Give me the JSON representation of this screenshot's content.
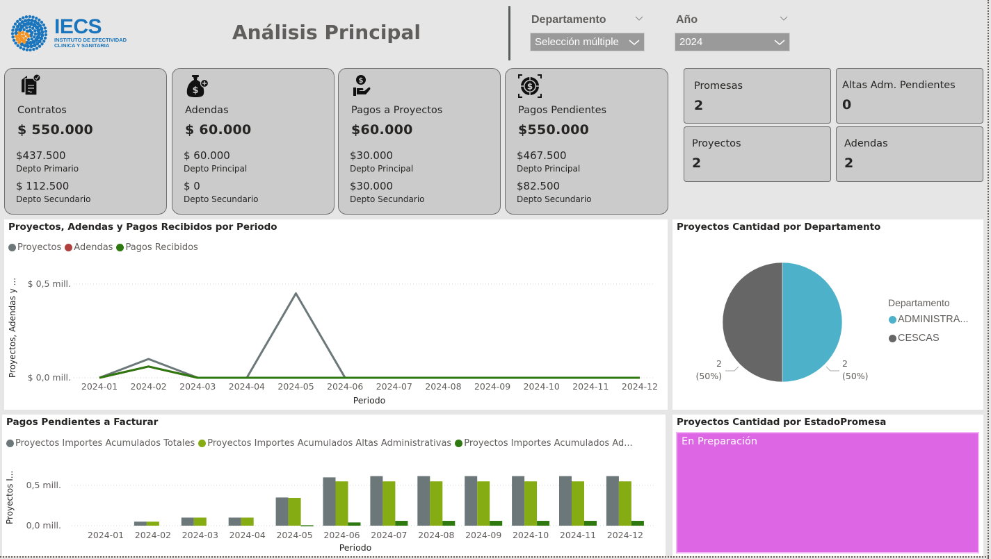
{
  "header": {
    "logo": {
      "name": "IECS",
      "subtitle_line1": "INSTITUTO DE EFECTIVIDAD",
      "subtitle_line2": "CLINICA Y SANITARIA"
    },
    "title": "Análisis Principal"
  },
  "slicers": [
    {
      "label": "Departamento",
      "value": "Selección múltiple"
    },
    {
      "label": "Año",
      "value": "2024"
    }
  ],
  "kpi_cards": [
    {
      "icon": "contract-icon",
      "title": "Contratos",
      "value": "$ 550.000",
      "sub1_value": "$437.500",
      "sub1_label": "Depto Primario",
      "sub2_value": "$ 112.500",
      "sub2_label": "Depto Secundario"
    },
    {
      "icon": "money-bag-icon",
      "title": "Adendas",
      "value": "$ 60.000",
      "sub1_value": "$ 60.000",
      "sub1_label": "Depto Principal",
      "sub2_value": "$ 0",
      "sub2_label": "Depto Secundario"
    },
    {
      "icon": "hand-coin-icon",
      "title": "Pagos a Proyectos",
      "value": "$60.000",
      "sub1_value": "$30.000",
      "sub1_label": "Depto Principal",
      "sub2_value": "$30.000",
      "sub2_label": "Depto Secundario"
    },
    {
      "icon": "dollar-target-icon",
      "title": "Pagos Pendientes",
      "value": "$550.000",
      "sub1_value": "$467.500",
      "sub1_label": "Depto Principal",
      "sub2_value": "$82.500",
      "sub2_label": "Depto Secundario"
    }
  ],
  "small_cards": [
    {
      "title": "Promesas",
      "value": "2"
    },
    {
      "title": "Altas Adm. Pendientes",
      "value": "0"
    },
    {
      "title": "Proyectos",
      "value": "2"
    },
    {
      "title": "Adendas",
      "value": "2"
    }
  ],
  "colors": {
    "proyectos": "#6c777a",
    "adendas": "#b0403d",
    "pagos_recibidos": "#2e7810",
    "altas_adm": "#86ac14",
    "administra": "#4db1c9",
    "cescas": "#666666",
    "treemap": "#dd66e5"
  },
  "chart_data": [
    {
      "type": "line",
      "title": "Proyectos, Adendas y Pagos Recibidos por Periodo",
      "xlabel": "Periodo",
      "ylabel": "Proyectos, Adendas y ...",
      "ytick_labels": [
        "$ 0,0 mill.",
        "$ 0,5 mill."
      ],
      "yticks": [
        0,
        0.5
      ],
      "ylim": [
        0,
        0.5
      ],
      "grid": true,
      "legend": "top-left",
      "categories": [
        "2024-01",
        "2024-02",
        "2024-03",
        "2024-04",
        "2024-05",
        "2024-06",
        "2024-07",
        "2024-08",
        "2024-09",
        "2024-10",
        "2024-11",
        "2024-12"
      ],
      "series": [
        {
          "name": "Proyectos",
          "color": "#6c777a",
          "values": [
            0,
            0.1,
            0,
            0,
            0.45,
            0,
            0,
            0,
            0,
            0,
            0,
            0
          ]
        },
        {
          "name": "Adendas",
          "color": "#b0403d",
          "values": [
            0,
            0.06,
            0,
            0,
            0,
            0,
            0,
            0,
            0,
            0,
            0,
            0
          ]
        },
        {
          "name": "Pagos Recibidos",
          "color": "#2e7810",
          "values": [
            0,
            0.06,
            0,
            0,
            0,
            0,
            0,
            0,
            0,
            0,
            0,
            0
          ]
        }
      ]
    },
    {
      "type": "pie",
      "title": "Proyectos Cantidad por Departamento",
      "legend_title": "Departamento",
      "legend": "right",
      "slices": [
        {
          "label": "ADMINISTRA...",
          "value": 2,
          "percent": "50%",
          "color": "#4db1c9",
          "data_label": "2",
          "data_label_pct": "(50%)"
        },
        {
          "label": "CESCAS",
          "value": 2,
          "percent": "50%",
          "color": "#666666",
          "data_label": "2",
          "data_label_pct": "(50%)"
        }
      ]
    },
    {
      "type": "bar",
      "title": "Pagos Pendientes a Facturar",
      "xlabel": "Periodo",
      "ylabel": "Proyectos I...",
      "ytick_labels": [
        "0,0 mill.",
        "0,5 mill."
      ],
      "yticks": [
        0,
        0.5
      ],
      "ylim": [
        0,
        0.7
      ],
      "grid": true,
      "legend": "top-left",
      "categories": [
        "2024-01",
        "2024-02",
        "2024-03",
        "2024-04",
        "2024-05",
        "2024-06",
        "2024-07",
        "2024-08",
        "2024-09",
        "2024-10",
        "2024-11",
        "2024-12"
      ],
      "series": [
        {
          "name": "Proyectos Importes Acumulados Totales",
          "color": "#6c777a",
          "values": [
            0,
            0.05,
            0.1,
            0.1,
            0.35,
            0.6,
            0.615,
            0.615,
            0.615,
            0.615,
            0.615,
            0.615
          ]
        },
        {
          "name": "Proyectos Importes Acumulados Altas Administrativas",
          "color": "#86ac14",
          "values": [
            0,
            0.05,
            0.1,
            0.1,
            0.345,
            0.55,
            0.55,
            0.55,
            0.55,
            0.55,
            0.55,
            0.55
          ]
        },
        {
          "name": "Proyectos Importes Acumulados Ad...",
          "color": "#2e7810",
          "values": [
            0,
            0,
            0,
            0,
            0.005,
            0.04,
            0.06,
            0.06,
            0.06,
            0.06,
            0.06,
            0.06
          ]
        }
      ]
    },
    {
      "type": "treemap",
      "title": "Proyectos Cantidad por EstadoPromesa",
      "tiles": [
        {
          "label": "En Preparación",
          "value": 2,
          "color": "#dd66e5"
        }
      ]
    }
  ]
}
